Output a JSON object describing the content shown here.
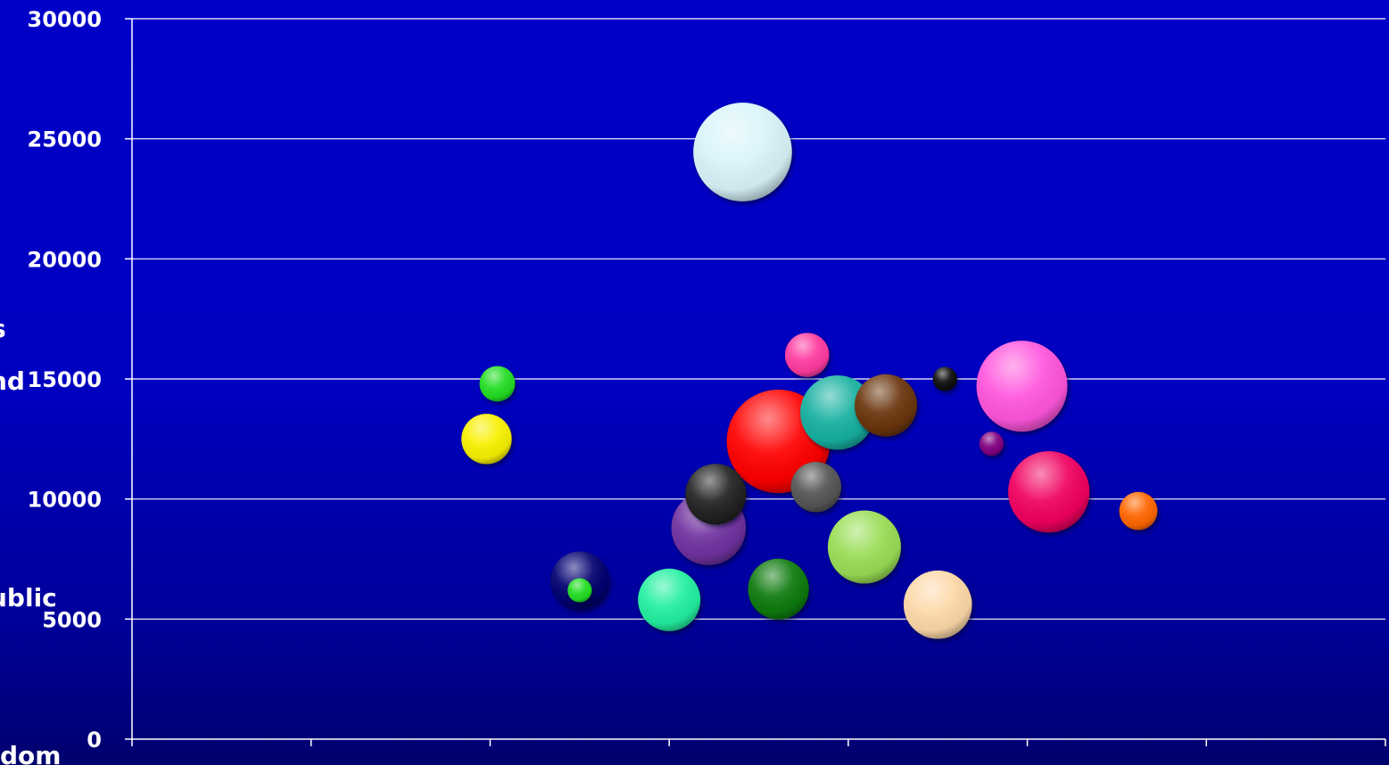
{
  "chart_data": {
    "type": "bubble",
    "title": "",
    "xlabel": "",
    "ylabel": "",
    "ylim": [
      0,
      30000
    ],
    "xlim": [
      0,
      7
    ],
    "y_ticks": [
      0,
      5000,
      10000,
      15000,
      20000,
      25000,
      30000
    ],
    "x_ticks": [
      0,
      1,
      2,
      3,
      4,
      5,
      6,
      7
    ],
    "grid": "horizontal",
    "cropped_labels": [
      "s",
      "nd",
      "ublic",
      "dom"
    ],
    "series": [
      {
        "x": 3.41,
        "y": 24450,
        "size": 100,
        "color": "#d8f4fa"
      },
      {
        "x": 3.77,
        "y": 16000,
        "size": 20,
        "color": "#ff3aa0"
      },
      {
        "x": 2.04,
        "y": 14800,
        "size": 13,
        "color": "#22dd22"
      },
      {
        "x": 4.54,
        "y": 15000,
        "size": 6,
        "color": "#111111"
      },
      {
        "x": 4.97,
        "y": 14700,
        "size": 85,
        "color": "#ff55dd"
      },
      {
        "x": 4.21,
        "y": 13900,
        "size": 40,
        "color": "#6a3608"
      },
      {
        "x": 3.94,
        "y": 13600,
        "size": 57,
        "color": "#18b0a0"
      },
      {
        "x": 3.61,
        "y": 12400,
        "size": 110,
        "color": "#ff0000"
      },
      {
        "x": 1.98,
        "y": 12500,
        "size": 26,
        "color": "#f8f000"
      },
      {
        "x": 4.8,
        "y": 12300,
        "size": 6,
        "color": "#800080"
      },
      {
        "x": 3.82,
        "y": 10500,
        "size": 26,
        "color": "#555555"
      },
      {
        "x": 3.26,
        "y": 10200,
        "size": 38,
        "color": "#222222"
      },
      {
        "x": 5.12,
        "y": 10300,
        "size": 68,
        "color": "#f00060"
      },
      {
        "x": 5.62,
        "y": 9500,
        "size": 15,
        "color": "#ff6600"
      },
      {
        "x": 3.22,
        "y": 8800,
        "size": 57,
        "color": "#7030a0"
      },
      {
        "x": 4.09,
        "y": 8000,
        "size": 55,
        "color": "#99dd55"
      },
      {
        "x": 2.5,
        "y": 6600,
        "size": 35,
        "color": "#000070"
      },
      {
        "x": 3.61,
        "y": 6250,
        "size": 38,
        "color": "#0a7a0a"
      },
      {
        "x": 2.5,
        "y": 6200,
        "size": 6,
        "color": "#22dd22"
      },
      {
        "x": 3.0,
        "y": 5800,
        "size": 40,
        "color": "#20f0a0"
      },
      {
        "x": 4.5,
        "y": 5600,
        "size": 48,
        "color": "#fdd8a8"
      }
    ]
  }
}
